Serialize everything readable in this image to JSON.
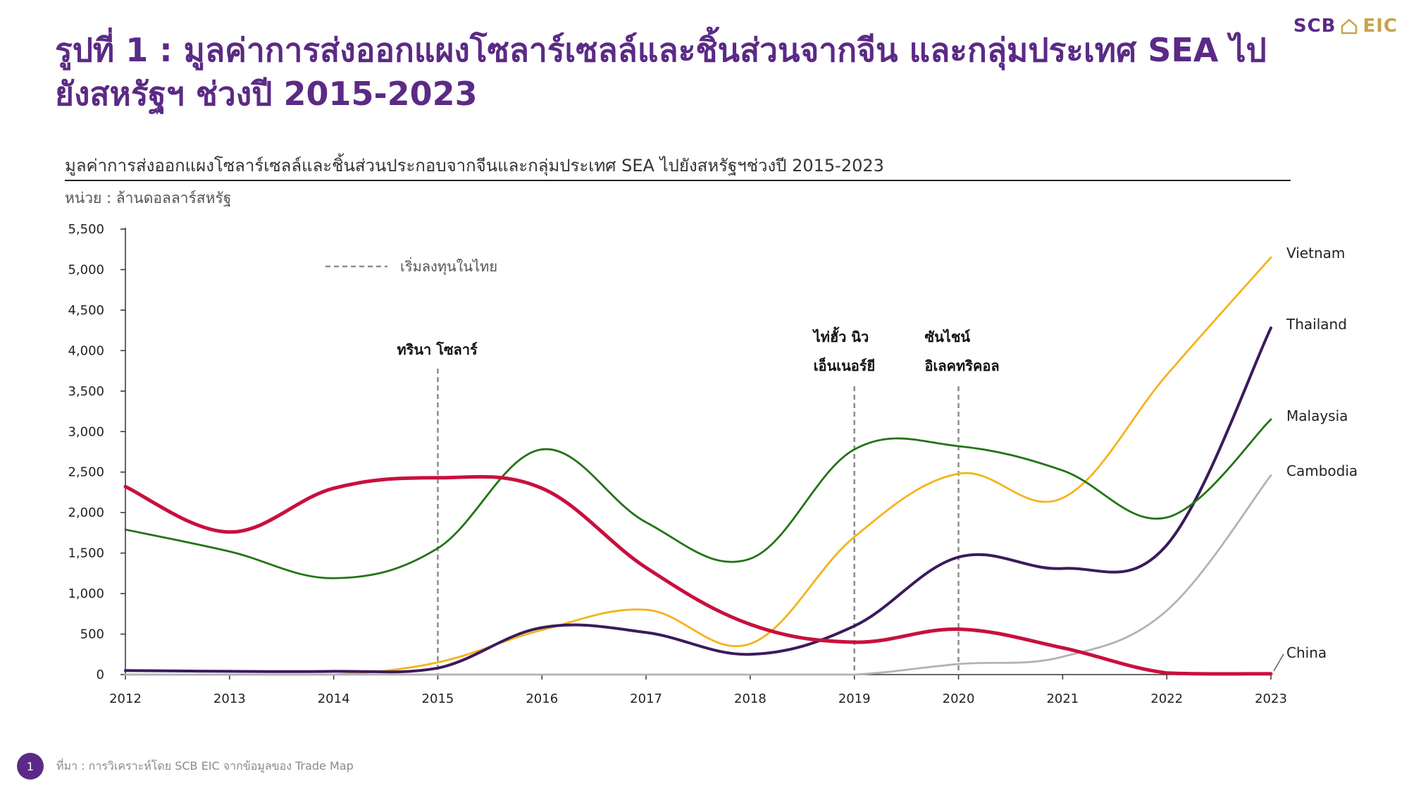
{
  "header": {
    "brand_scb": "SCB",
    "brand_eic": "EIC",
    "title": "รูปที่ 1 : มูลค่าการส่งออกแผงโซลาร์เซลล์และชิ้นส่วนจากจีน และกลุ่มประเทศ SEA ไปยังสหรัฐฯ ช่วงปี 2015-2023"
  },
  "chart_data": {
    "type": "line",
    "title": "มูลค่าการส่งออกแผงโซลาร์เซลล์และชิ้นส่วนประกอบจากจีนและกลุ่มประเทศ SEA ไปยังสหรัฐฯช่วงปี 2015-2023",
    "unit_label": "หน่วย : ล้านดอลลาร์สหรัฐ",
    "x": [
      2012,
      2013,
      2014,
      2015,
      2016,
      2017,
      2018,
      2019,
      2020,
      2021,
      2022,
      2023
    ],
    "ylim": [
      0,
      5500
    ],
    "yticks": [
      "0",
      "500",
      "1,000",
      "1,500",
      "2,000",
      "2,500",
      "3,000",
      "3,500",
      "4,000",
      "4,500",
      "5,000",
      "5,500"
    ],
    "series": [
      {
        "name": "Vietnam",
        "color": "#f5b31b",
        "values": [
          0,
          0,
          0,
          150,
          550,
          800,
          380,
          1700,
          2480,
          2180,
          3700,
          5150
        ]
      },
      {
        "name": "Thailand",
        "color": "#3b1a5c",
        "values": [
          50,
          40,
          40,
          80,
          580,
          520,
          250,
          600,
          1450,
          1310,
          1600,
          4280
        ]
      },
      {
        "name": "Malaysia",
        "color": "#237316",
        "values": [
          1790,
          1520,
          1190,
          1560,
          2780,
          1880,
          1430,
          2780,
          2820,
          2520,
          1940,
          3150
        ]
      },
      {
        "name": "Cambodia",
        "color": "#b3b3b3",
        "values": [
          0,
          0,
          0,
          0,
          0,
          0,
          0,
          0,
          130,
          220,
          790,
          2460
        ]
      },
      {
        "name": "China",
        "color": "#c8103e",
        "values": [
          2320,
          1760,
          2300,
          2430,
          2300,
          1320,
          620,
          400,
          560,
          330,
          20,
          10
        ]
      }
    ],
    "legend": {
      "label": "เริ่มลงทุนในไทย",
      "placement": "top-left"
    },
    "annotations": [
      {
        "x": 2015,
        "lines": [
          "ทรินา โซลาร์"
        ]
      },
      {
        "x": 2019,
        "lines": [
          "ไท่ฮั้ว นิว",
          "เอ็นเนอร์ยี"
        ]
      },
      {
        "x": 2020,
        "lines": [
          "ซันไชน์",
          "อิเลคทริคอล"
        ]
      }
    ]
  },
  "footer": {
    "page_number": "1",
    "source": "ที่มา : การวิเคราะห์โดย SCB EIC จากข้อมูลของ Trade Map"
  }
}
